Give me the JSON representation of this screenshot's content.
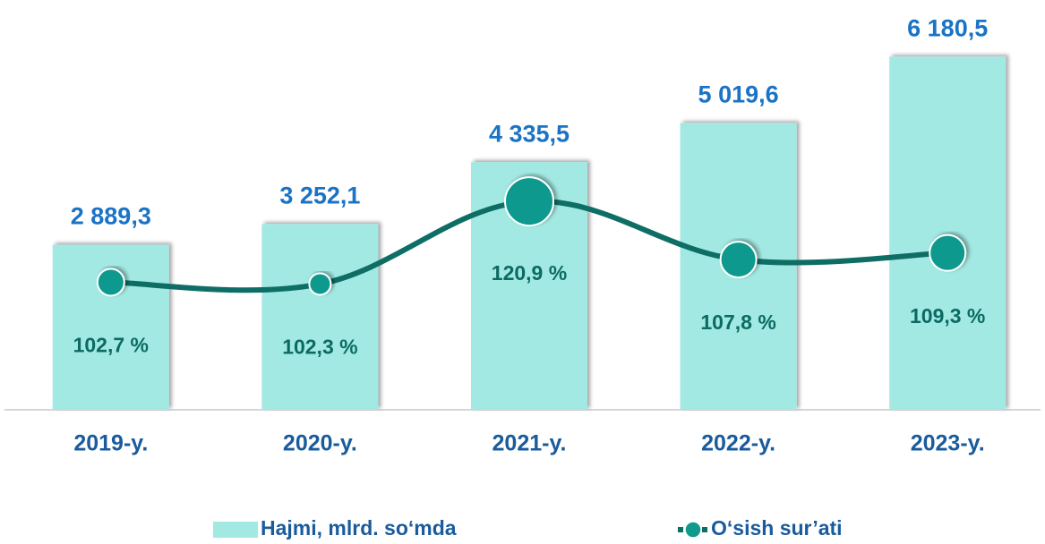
{
  "chart_data": {
    "type": "bar",
    "categories": [
      "2019-y.",
      "2020-y.",
      "2021-y.",
      "2022-y.",
      "2023-y."
    ],
    "ylim": [
      0,
      7000
    ],
    "y2lim": [
      74,
      164
    ],
    "legend": "bottom",
    "series": [
      {
        "name": "Hajmi, mlrd. so‘mda",
        "type": "bar",
        "color": "#a3e9e3",
        "values": [
          2889.3,
          3252.1,
          4335.5,
          5019.6,
          6180.5
        ],
        "value_labels": [
          "2 889,3",
          "3 252,1",
          "4 335,5",
          "5 019,6",
          "6 180,5"
        ]
      },
      {
        "name": "O‘sish sur’ati",
        "type": "line",
        "axis": "y2",
        "color": "#0e6e66",
        "values": [
          102.7,
          102.3,
          120.9,
          107.8,
          109.3
        ],
        "value_labels": [
          "102,7 %",
          "102,3 %",
          "120,9 %",
          "107,8 %",
          "109,3 %"
        ]
      }
    ]
  }
}
